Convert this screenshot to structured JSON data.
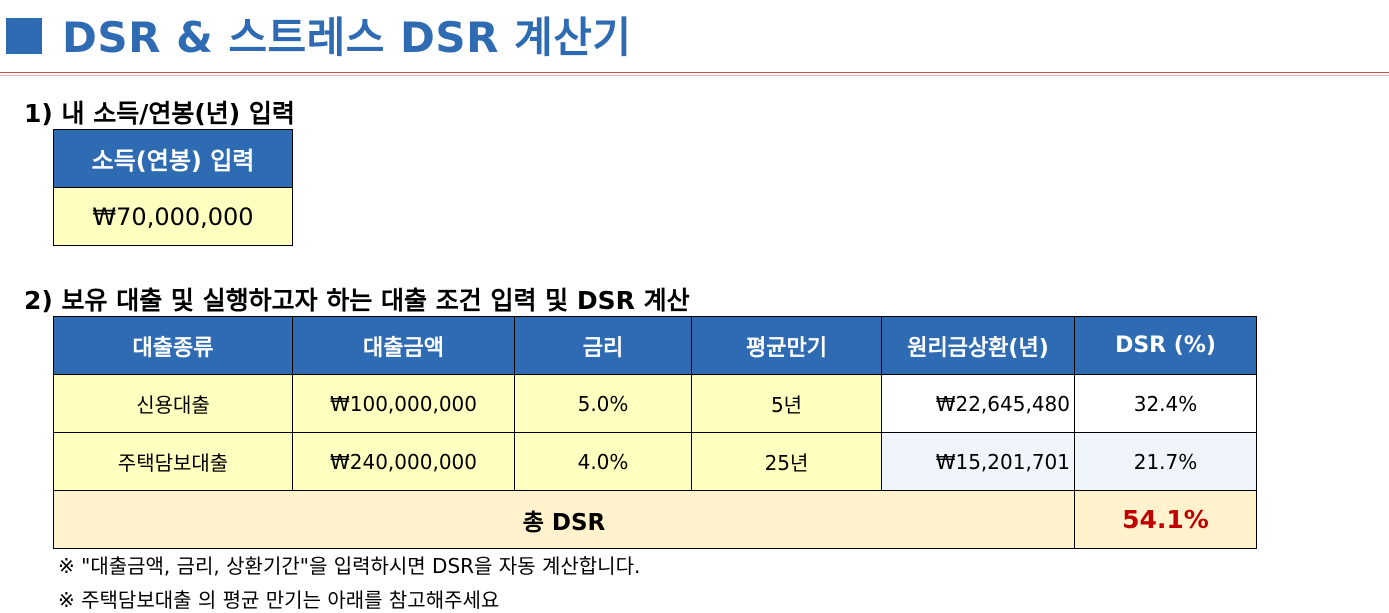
{
  "title": "DSR & 스트레스 DSR 계산기",
  "section1": {
    "label": "1) 내 소득/연봉(년) 입력"
  },
  "income": {
    "header": "소득(연봉) 입력",
    "value": "₩70,000,000"
  },
  "section2": {
    "label": "2) 보유 대출 및 실행하고자 하는 대출 조건 입력 및 DSR 계산"
  },
  "loan_table": {
    "headers": [
      "대출종류",
      "대출금액",
      "금리",
      "평균만기",
      "원리금상환(년)",
      "DSR (%)"
    ],
    "rows": [
      [
        "신용대출",
        "₩100,000,000",
        "5.0%",
        "5년",
        "₩22,645,480",
        "32.4%"
      ],
      [
        "주택담보대출",
        "₩240,000,000",
        "4.0%",
        "25년",
        "₩15,201,701",
        "21.7%"
      ]
    ],
    "total_label": "총 DSR",
    "total_value": "54.1%"
  },
  "notes": [
    "※ \"대출금액, 금리, 상환기간\"을 입력하시면 DSR을 자동 계산합니다.",
    "※ 주택담보대출 의 평균 만기는 아래를 참고해주세요"
  ],
  "colors": {
    "accent": "#2e6bb3",
    "input_fill": "#ffffbf",
    "total_fill": "#fff2cc",
    "total_text": "#c00000"
  }
}
